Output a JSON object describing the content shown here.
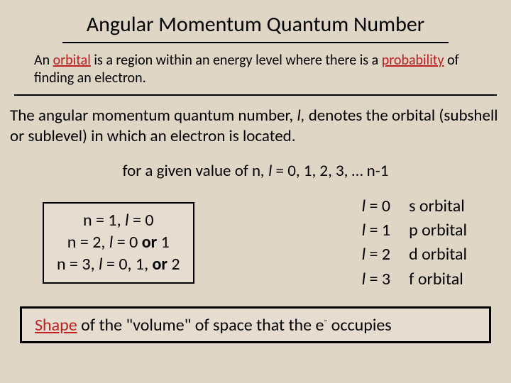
{
  "colors": {
    "background": "#e0d6c6",
    "box_background": "#e6dcd0",
    "text": "#000000",
    "accent_red": "#c02020",
    "border": "#000000"
  },
  "title": "Angular Momentum Quantum Number",
  "definition": {
    "prefix": "An ",
    "term1": "orbital",
    "mid1": " is a region within an energy level where there is a ",
    "term2": "probability",
    "suffix": " of finding an electron."
  },
  "paragraph": {
    "p1": "The angular momentum quantum number, ",
    "sym": "l,",
    "p2": " denotes the orbital (subshell or sublevel) in which an electron is located."
  },
  "formula": {
    "pre": "for a given value of n",
    "sym": ", l",
    "post": " = 0, 1, 2, 3, … n-1"
  },
  "examples": {
    "line1_a": "n = 1, ",
    "line1_sym": "l",
    "line1_b": " = 0",
    "line2_a": "n = 2, ",
    "line2_sym": "l",
    "line2_b": " = 0 ",
    "line2_or": "or",
    "line2_c": " 1",
    "line3_a": "n = 3, ",
    "line3_sym": "l",
    "line3_b": " = 0, 1, ",
    "line3_or": "or",
    "line3_c": " 2"
  },
  "orbitals": [
    {
      "lval": " = 0",
      "name": "s orbital"
    },
    {
      "lval": " = 1",
      "name": "p orbital"
    },
    {
      "lval": " = 2",
      "name": "d orbital"
    },
    {
      "lval": " = 3",
      "name": "f orbital"
    }
  ],
  "orb_sym": "l",
  "shape": {
    "term": "Shape",
    "mid": " of the \"volume\" of space that the e",
    "sup": "-",
    "suffix": " occupies"
  }
}
